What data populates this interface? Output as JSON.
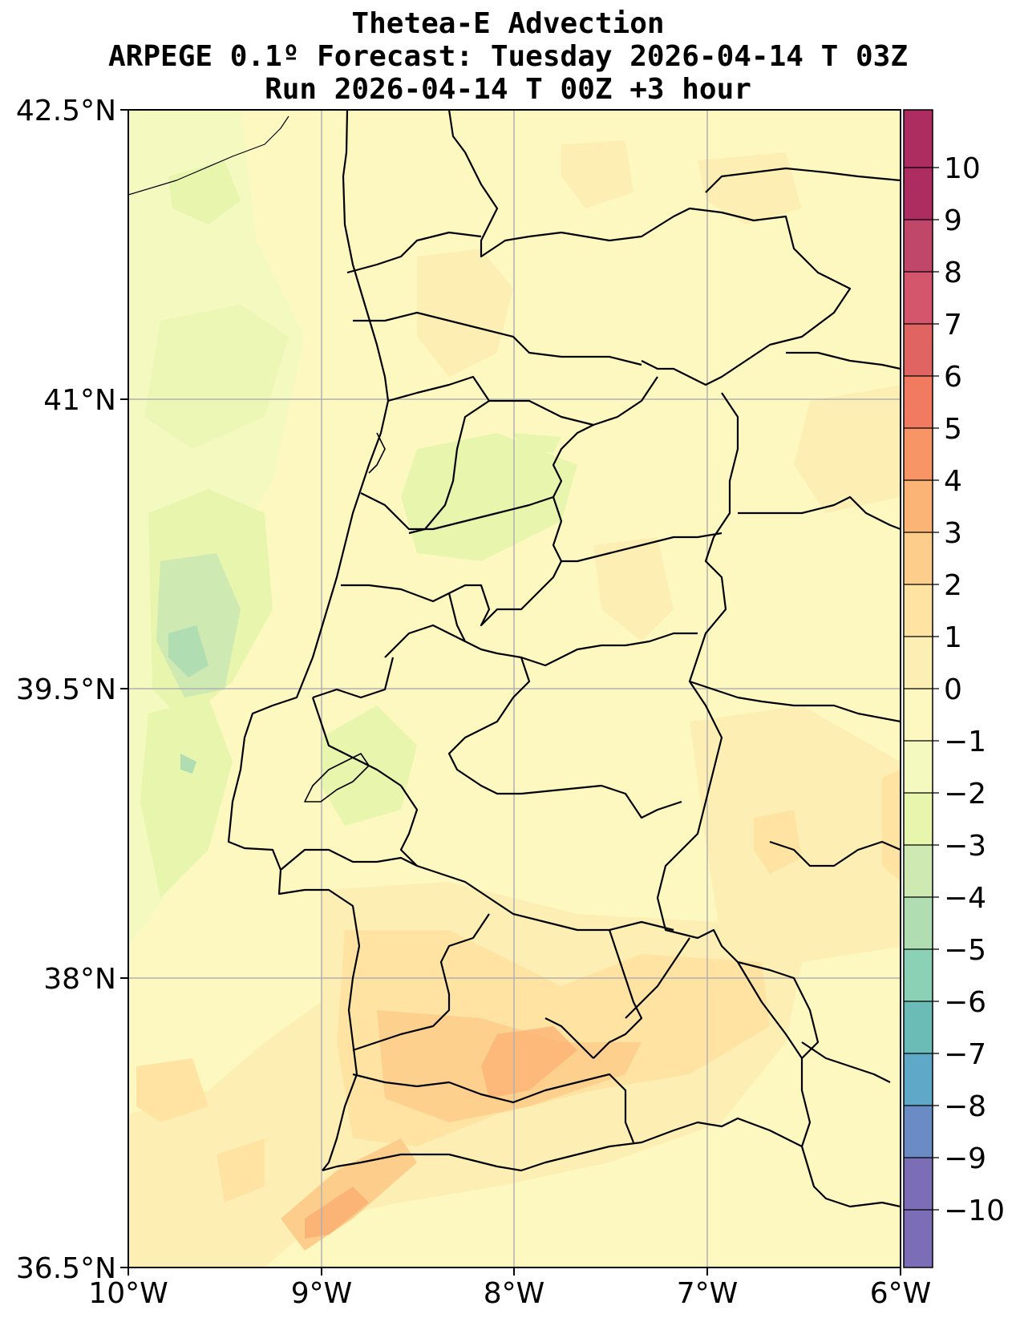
{
  "title": {
    "line1": "Thetea-E Advection",
    "line2": "ARPEGE 0.1º Forecast: Tuesday 2026-04-14 T 03Z",
    "line3": "Run 2026-04-14 T 00Z +3 hour"
  },
  "map": {
    "lon_range": [
      -10,
      -6
    ],
    "lat_range": [
      36.5,
      42.5
    ],
    "x_ticks": [
      "10°W",
      "9°W",
      "8°W",
      "7°W",
      "6°W"
    ],
    "y_ticks": [
      "36.5°N",
      "38°N",
      "39.5°N",
      "41°N",
      "42.5°N"
    ],
    "grid": true,
    "background_value_color": "#fdf8c0"
  },
  "colorbar": {
    "levels": [
      -10,
      -9,
      -8,
      -7,
      -6,
      -5,
      -4,
      -3,
      -2,
      -1,
      0,
      1,
      2,
      3,
      4,
      5,
      6,
      7,
      8,
      9,
      10
    ],
    "labels": [
      "10",
      "9",
      "8",
      "7",
      "6",
      "5",
      "4",
      "3",
      "2",
      "1",
      "0",
      "−1",
      "−2",
      "−3",
      "−4",
      "−5",
      "−6",
      "−7",
      "−8",
      "−9",
      "−10"
    ],
    "colors": [
      "#7b6eb6",
      "#6a8bc4",
      "#5fa8c7",
      "#6bbcb6",
      "#8ad1b5",
      "#b0ddb1",
      "#cfe9b3",
      "#e7f5ad",
      "#f3f9bf",
      "#fdf8c0",
      "#fdefb4",
      "#fee3a3",
      "#fdcd8b",
      "#fbb376",
      "#f89566",
      "#f07b60",
      "#e06562",
      "#d4566c",
      "#c1476a",
      "#ae2d61"
    ]
  }
}
